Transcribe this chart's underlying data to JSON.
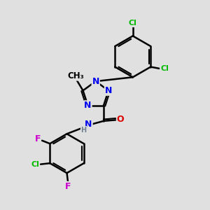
{
  "bg_color": "#e0e0e0",
  "bond_color": "#000000",
  "bond_width": 1.8,
  "atom_colors": {
    "N": "#0000ee",
    "O": "#dd0000",
    "Cl": "#00bb00",
    "F": "#cc00cc",
    "H": "#708090",
    "C": "#000000"
  },
  "font_size": 8.5
}
